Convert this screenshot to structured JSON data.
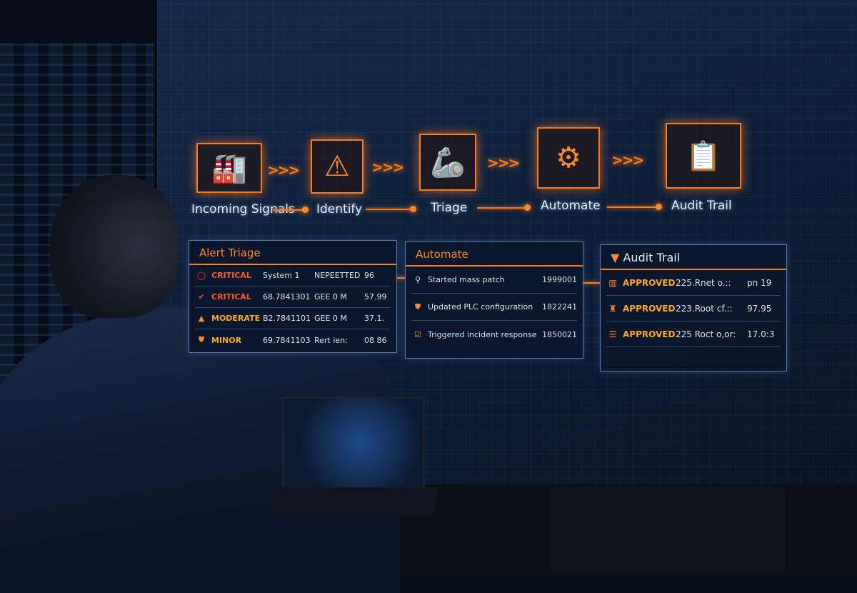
{
  "pipeline": {
    "steps": [
      {
        "label": "Incoming Signals",
        "icon": "factory-icon"
      },
      {
        "label": "Identify",
        "icon": "warning-icon"
      },
      {
        "label": "Triage",
        "icon": "robot-arm-icon"
      },
      {
        "label": "Automate",
        "icon": "gears-icon"
      },
      {
        "label": "Audit Trail",
        "icon": "clipboard-icon"
      }
    ],
    "arrow": ">>>",
    "accent": "#ff7a1a"
  },
  "alert_triage": {
    "title": "Alert Triage",
    "rows": [
      {
        "severity": "CRITICAL",
        "icon": "circle-icon",
        "source": "System 1",
        "status": "NEPEETTED",
        "value": "96",
        "color": "#ff3b2a"
      },
      {
        "severity": "CRITICAL",
        "icon": "check-icon",
        "source": "68.7841301",
        "status": "GEE 0 M",
        "value": "57.99",
        "color": "#ff3b2a"
      },
      {
        "severity": "MODERATE",
        "icon": "warning-icon",
        "source": "B2.7841101",
        "status": "GEE 0 M",
        "value": "37.1.",
        "color": "#ffa52a"
      },
      {
        "severity": "MINOR",
        "icon": "shield-icon",
        "source": "69.7841103",
        "status": "Rert ien:",
        "value": "08 86",
        "color": "#ffa52a"
      }
    ]
  },
  "automate": {
    "title": "Automate",
    "rows": [
      {
        "icon": "search-icon",
        "text": "Started mass patch",
        "value": "1999001"
      },
      {
        "icon": "shield-icon",
        "text": "Updated PLC configuration",
        "value": "1822241"
      },
      {
        "icon": "checkbox-icon",
        "text": "Triggered incident response",
        "value": "1850021"
      }
    ]
  },
  "audit": {
    "title": "Audit Trail",
    "rows": [
      {
        "icon": "document-icon",
        "status": "APPROVED",
        "text": "225.Rnet o.::",
        "value": "pn 19"
      },
      {
        "icon": "robot-icon",
        "status": "APPROVED",
        "text": "223.Root cf.::",
        "value": "97.95"
      },
      {
        "icon": "server-icon",
        "status": "APPROVED",
        "text": "225 Roct o,or:",
        "value": "17.0:3"
      }
    ]
  }
}
